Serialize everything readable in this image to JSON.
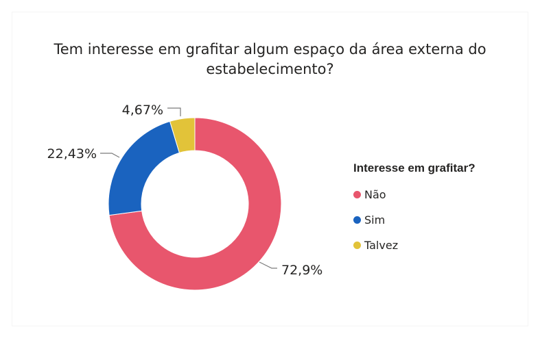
{
  "chart_data": {
    "type": "pie",
    "title": "Tem interesse em grafitar algum espaço da área externa do estabelecimento?",
    "donut": true,
    "legend_title": "Interesse em grafitar?",
    "legend_position": "right",
    "slices": [
      {
        "label": "Não",
        "value": 72.9,
        "data_label": "72,9%",
        "color": "#E8566D"
      },
      {
        "label": "Sim",
        "value": 22.43,
        "data_label": "22,43%",
        "color": "#1A63BF"
      },
      {
        "label": "Talvez",
        "value": 4.67,
        "data_label": "4,67%",
        "color": "#E2C339"
      }
    ]
  }
}
